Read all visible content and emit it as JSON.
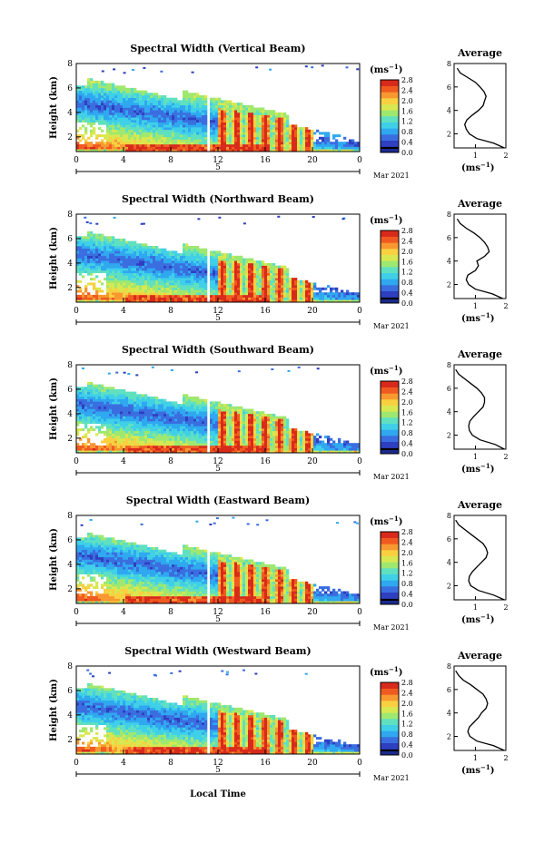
{
  "colorbar": {
    "unit": "(ms",
    "unit_exp": "−1",
    "unit_close": ")",
    "ticks": [
      "0.0",
      "0.4",
      "0.8",
      "1.2",
      "1.6",
      "2.0",
      "2.4",
      "2.8"
    ],
    "colors": [
      "#1a2a8c",
      "#2e3fc0",
      "#3a6ee0",
      "#2fa8f0",
      "#3fd0e8",
      "#5fe0c0",
      "#9fe870",
      "#d8e850",
      "#f8d040",
      "#f89830",
      "#f05a20",
      "#d82a1a"
    ]
  },
  "date_label": "Mar 2021",
  "x_axis_title": "Local Time",
  "average": {
    "title": "Average",
    "xticks": [
      "1",
      "2"
    ],
    "xlabel": "(ms",
    "xlabel_exp": "−1",
    "xlabel_close": ")",
    "yticks": [
      "2",
      "4",
      "6",
      "8"
    ]
  },
  "chart_data": [
    {
      "type": "heatmap",
      "title": "Spectral Width (Vertical Beam)",
      "ylabel": "Height (km)",
      "xticks": [
        "0",
        "4",
        "8",
        "12",
        "16",
        "20",
        "0"
      ],
      "day_label": "5",
      "yticks": [
        "2",
        "4",
        "6",
        "8"
      ],
      "xlim": [
        0,
        24
      ],
      "ylim": [
        0.8,
        8
      ],
      "zlim": [
        0,
        2.8
      ],
      "profile": {
        "h": [
          0.8,
          1.2,
          1.6,
          2.0,
          2.4,
          2.8,
          3.2,
          3.6,
          4.0,
          4.4,
          4.8,
          5.2,
          5.6,
          6.0,
          6.4,
          6.8,
          7.2,
          7.6
        ],
        "w": [
          1.95,
          1.6,
          1.05,
          0.8,
          0.7,
          0.65,
          0.72,
          0.9,
          1.1,
          1.25,
          1.3,
          1.35,
          1.28,
          1.15,
          1.0,
          0.75,
          0.5,
          0.4
        ]
      }
    },
    {
      "type": "heatmap",
      "title": "Spectral Width (Northward Beam)",
      "ylabel": "Height (km)",
      "xticks": [
        "0",
        "4",
        "8",
        "12",
        "16",
        "20",
        "0"
      ],
      "day_label": "5",
      "yticks": [
        "2",
        "4",
        "6",
        "8"
      ],
      "xlim": [
        0,
        24
      ],
      "ylim": [
        0.8,
        8
      ],
      "zlim": [
        0,
        2.8
      ],
      "profile": {
        "h": [
          0.8,
          1.2,
          1.6,
          2.0,
          2.4,
          2.8,
          3.2,
          3.6,
          4.0,
          4.4,
          4.8,
          5.2,
          5.6,
          6.0,
          6.4,
          6.8,
          7.2,
          7.6
        ],
        "w": [
          1.9,
          1.55,
          1.0,
          0.78,
          0.7,
          0.75,
          1.0,
          1.1,
          1.05,
          1.3,
          1.45,
          1.4,
          1.3,
          1.15,
          0.95,
          0.7,
          0.5,
          0.4
        ]
      }
    },
    {
      "type": "heatmap",
      "title": "Spectral Width (Southward Beam)",
      "ylabel": "Height (km)",
      "xticks": [
        "0",
        "4",
        "8",
        "12",
        "16",
        "20",
        "0"
      ],
      "day_label": "5",
      "yticks": [
        "2",
        "4",
        "6",
        "8"
      ],
      "xlim": [
        0,
        24
      ],
      "ylim": [
        0.8,
        8
      ],
      "zlim": [
        0,
        2.8
      ],
      "profile": {
        "h": [
          0.8,
          1.2,
          1.6,
          2.0,
          2.4,
          2.8,
          3.2,
          3.6,
          4.0,
          4.4,
          4.8,
          5.2,
          5.6,
          6.0,
          6.4,
          6.8,
          7.2,
          7.6
        ],
        "w": [
          1.95,
          1.65,
          1.15,
          0.9,
          0.8,
          0.78,
          0.82,
          0.95,
          1.1,
          1.25,
          1.3,
          1.3,
          1.2,
          1.05,
          0.85,
          0.65,
          0.45,
          0.35
        ]
      }
    },
    {
      "type": "heatmap",
      "title": "Spectral Width (Eastward Beam)",
      "ylabel": "Height (km)",
      "xticks": [
        "0",
        "4",
        "8",
        "12",
        "16",
        "20",
        "0"
      ],
      "day_label": "5",
      "yticks": [
        "2",
        "4",
        "6",
        "8"
      ],
      "xlim": [
        0,
        24
      ],
      "ylim": [
        0.8,
        8
      ],
      "zlim": [
        0,
        2.8
      ],
      "profile": {
        "h": [
          0.8,
          1.2,
          1.6,
          2.0,
          2.4,
          2.8,
          3.2,
          3.6,
          4.0,
          4.4,
          4.8,
          5.2,
          5.6,
          6.0,
          6.4,
          6.8,
          7.2,
          7.6
        ],
        "w": [
          1.95,
          1.6,
          1.1,
          0.85,
          0.78,
          0.8,
          0.9,
          1.05,
          1.2,
          1.35,
          1.4,
          1.35,
          1.25,
          1.05,
          0.85,
          0.65,
          0.45,
          0.35
        ]
      }
    },
    {
      "type": "heatmap",
      "title": "Spectral Width (Westward Beam)",
      "ylabel": "Height (km)",
      "xticks": [
        "0",
        "4",
        "8",
        "12",
        "16",
        "20",
        "0"
      ],
      "day_label": "5",
      "yticks": [
        "2",
        "4",
        "6",
        "8"
      ],
      "xlim": [
        0,
        24
      ],
      "ylim": [
        0.8,
        8
      ],
      "zlim": [
        0,
        2.8
      ],
      "profile": {
        "h": [
          0.8,
          1.2,
          1.6,
          2.0,
          2.4,
          2.8,
          3.2,
          3.6,
          4.0,
          4.4,
          4.8,
          5.2,
          5.6,
          6.0,
          6.4,
          6.8,
          7.2,
          7.6
        ],
        "w": [
          1.95,
          1.6,
          1.05,
          0.82,
          0.75,
          0.8,
          0.95,
          1.1,
          1.2,
          1.35,
          1.4,
          1.35,
          1.25,
          1.05,
          0.85,
          0.6,
          0.45,
          0.35
        ]
      }
    }
  ]
}
